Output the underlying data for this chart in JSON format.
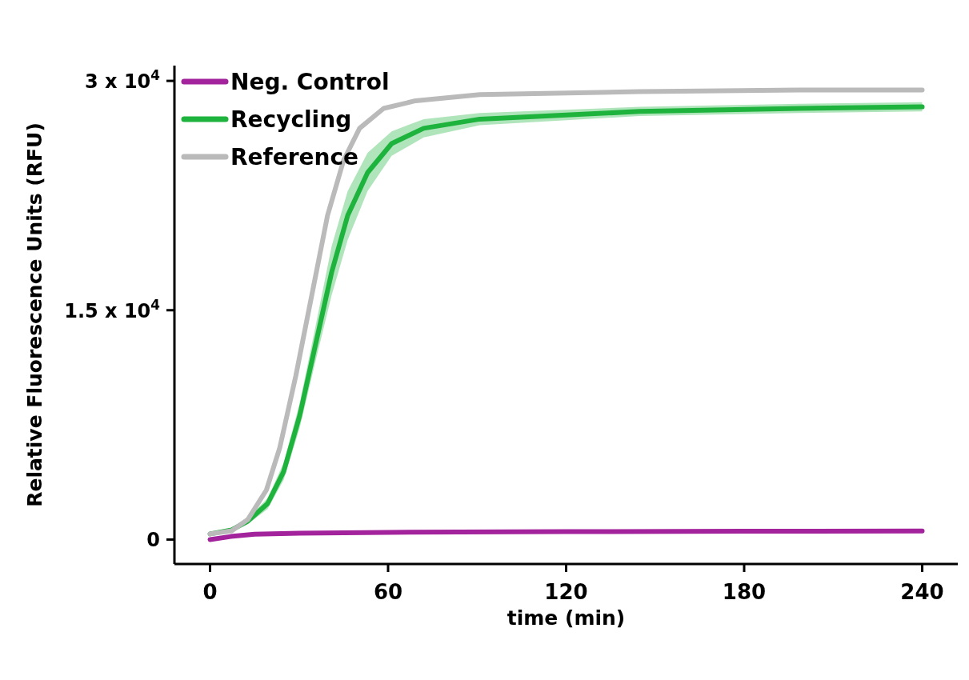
{
  "chart_data": {
    "type": "line",
    "xlabel": "time (min)",
    "ylabel": "Relative Fluorescence Units (RFU)",
    "xlim": [
      -12,
      252
    ],
    "xticks": [
      0,
      60,
      120,
      180,
      240
    ],
    "ylim": [
      -1600,
      31000
    ],
    "yticks": [
      0,
      {
        "value": 15000,
        "label": "1.5 x 10$^{4}$"
      },
      {
        "value": 30000,
        "label": "3 x 10$^{4}$"
      }
    ],
    "grid": false,
    "legend": "top left",
    "marker": "none",
    "line_style": "solid",
    "series": [
      {
        "name": "Neg. Control",
        "color": "#a3239c",
        "x": [
          0,
          7,
          15,
          30,
          60,
          120,
          180,
          240
        ],
        "values": [
          0,
          200,
          350,
          420,
          470,
          520,
          540,
          560
        ]
      },
      {
        "name": "Recycling",
        "color": "#1eb33c",
        "x": [
          0,
          7.3,
          12.7,
          19.4,
          24.8,
          30.2,
          35.6,
          41,
          46.4,
          53.1,
          61.2,
          72,
          90.9,
          144.8,
          198.7,
          240
        ],
        "values": [
          370,
          630,
          1200,
          2350,
          4440,
          8100,
          12800,
          17500,
          21200,
          24000,
          25900,
          26900,
          27500,
          28000,
          28200,
          28300
        ],
        "lower": [
          300,
          550,
          1000,
          2000,
          3900,
          7300,
          11700,
          16000,
          19600,
          22800,
          25100,
          26300,
          27100,
          27700,
          27900,
          28000
        ],
        "upper": [
          450,
          720,
          1400,
          2700,
          5000,
          8900,
          14000,
          19200,
          22800,
          25300,
          26700,
          27500,
          27900,
          28300,
          28500,
          28600
        ]
      },
      {
        "name": "Reference",
        "color": "#bababa",
        "x": [
          0,
          7.3,
          12.7,
          19,
          23.5,
          28.9,
          34.2,
          39.6,
          45,
          50.4,
          58.5,
          69.3,
          90.9,
          144.8,
          198.7,
          240
        ],
        "values": [
          370,
          575,
          1300,
          3240,
          6010,
          10700,
          15900,
          21200,
          24800,
          26900,
          28200,
          28700,
          29100,
          29300,
          29400,
          29400
        ]
      }
    ]
  }
}
